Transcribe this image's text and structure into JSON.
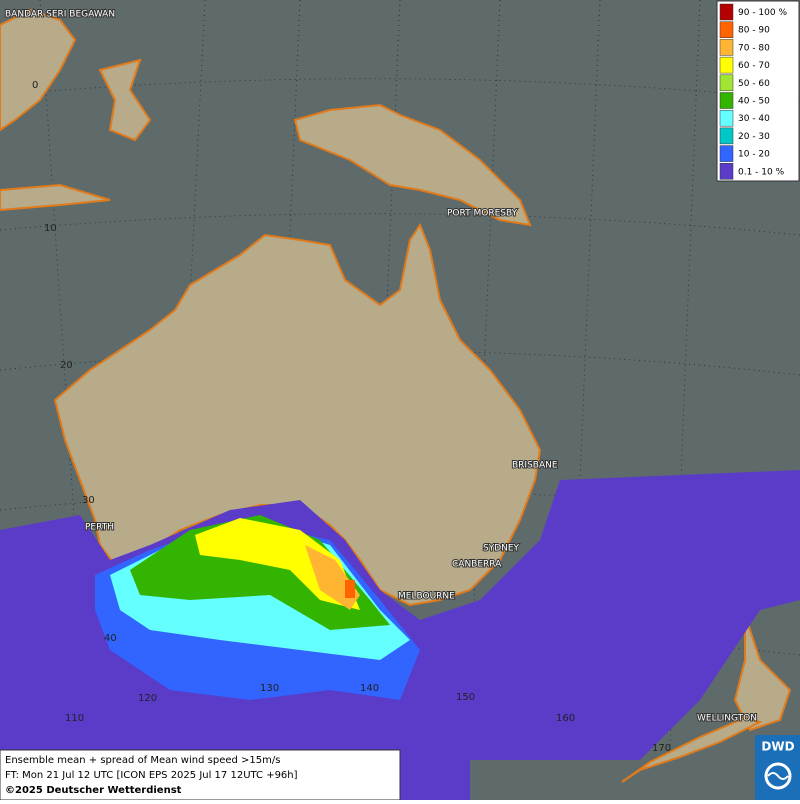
{
  "cities": [
    "BANDAR SERI BEGAWAN",
    "PORT MORESBY",
    "BRISBANE",
    "PERTH",
    "SYDNEY",
    "CANBERRA",
    "MELBOURNE",
    "WELLINGTON"
  ],
  "grid_labels": {
    "latitudes": [
      "0",
      "10",
      "20",
      "30",
      "40"
    ],
    "longitudes": [
      "110",
      "120",
      "130",
      "140",
      "150",
      "160",
      "170"
    ]
  },
  "legend": {
    "items": [
      {
        "label": "90 - 100 %",
        "color": "#b40000"
      },
      {
        "label": "80 - 90",
        "color": "#ff6400"
      },
      {
        "label": "70 - 80",
        "color": "#ffb432"
      },
      {
        "label": "60 - 70",
        "color": "#ffff00"
      },
      {
        "label": "50 - 60",
        "color": "#a0e632"
      },
      {
        "label": "40 - 50",
        "color": "#32b400"
      },
      {
        "label": "30 - 40",
        "color": "#64ffff"
      },
      {
        "label": "20 - 30",
        "color": "#00c8c8"
      },
      {
        "label": "10 - 20",
        "color": "#3264ff"
      },
      {
        "label": "0.1 - 10 %",
        "color": "#5a3cc8"
      }
    ]
  },
  "footer": {
    "lines": [
      "Ensemble mean + spread of Mean wind speed >15m/s",
      "FT: Mon 21 Jul 12 UTC [ICON EPS 2025 Jul 17 12UTC +96h]"
    ],
    "copyright": "©2025 Deutscher Wetterdienst"
  },
  "logo": {
    "text": "DWD"
  }
}
